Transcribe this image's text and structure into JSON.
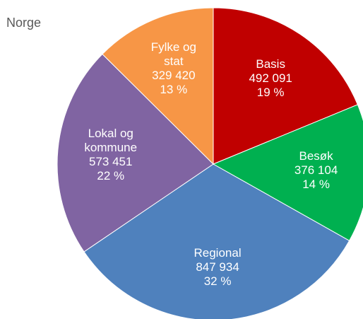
{
  "chart_data": {
    "type": "pie",
    "title": "Norge",
    "categories": [
      "Basis",
      "Besøk",
      "Regional",
      "Lokal og kommune",
      "Fylke og stat"
    ],
    "values": [
      492091,
      376104,
      847934,
      573451,
      329420
    ],
    "value_labels": [
      "492 091",
      "376 104",
      "847 934",
      "573 451",
      "329 420"
    ],
    "percent_labels": [
      "19 %",
      "14 %",
      "32 %",
      "22 %",
      "13 %"
    ],
    "colors": [
      "#c00000",
      "#00b050",
      "#4f81bd",
      "#8064a2",
      "#f79646"
    ]
  }
}
